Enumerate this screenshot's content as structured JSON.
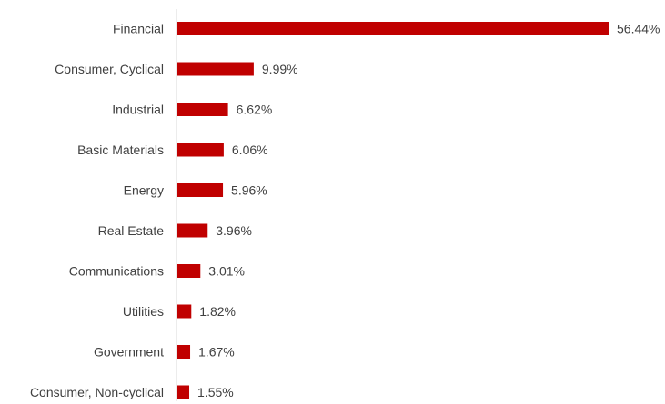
{
  "chart_data": {
    "type": "bar",
    "orientation": "horizontal",
    "categories": [
      "Financial",
      "Consumer, Cyclical",
      "Industrial",
      "Basic Materials",
      "Energy",
      "Real Estate",
      "Communications",
      "Utilities",
      "Government",
      "Consumer, Non-cyclical"
    ],
    "values": [
      56.44,
      9.99,
      6.62,
      6.06,
      5.96,
      3.96,
      3.01,
      1.82,
      1.67,
      1.55
    ],
    "value_labels": [
      "56.44%",
      "9.99%",
      "6.62%",
      "6.06%",
      "5.96%",
      "3.96%",
      "3.01%",
      "1.82%",
      "1.67%",
      "1.55%"
    ],
    "value_unit": "%",
    "title": "",
    "xlabel": "",
    "ylabel": "",
    "grid": false,
    "legend": "none",
    "colors": {
      "bar": "#c00000",
      "axis": "#d9d9d9",
      "text": "#404040"
    }
  }
}
